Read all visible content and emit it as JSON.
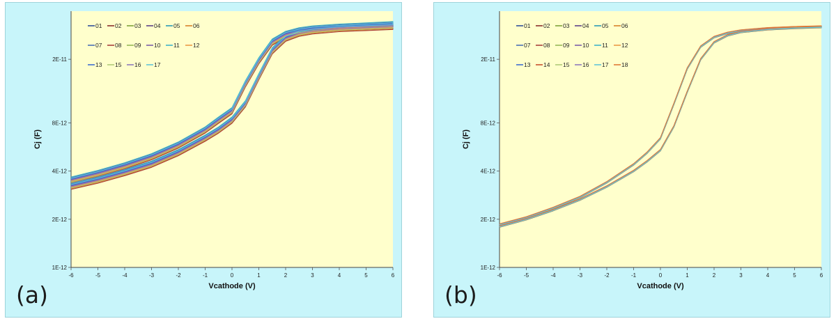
{
  "chart_data": [
    {
      "id": "a",
      "type": "line",
      "panel_label": "(a)",
      "xlabel": "Vcathode (V)",
      "ylabel": "Cj (F)",
      "xlim": [
        -6,
        6
      ],
      "yscale": "log",
      "ylim": [
        1e-12,
        4e-11
      ],
      "x_ticks": [
        "-6",
        "-5",
        "-4",
        "-3",
        "-2",
        "-1",
        "0",
        "1",
        "2",
        "3",
        "4",
        "5",
        "6"
      ],
      "y_ticks": [
        {
          "value": 1e-12,
          "label": "1E-12"
        },
        {
          "value": 2e-12,
          "label": "2E-12"
        },
        {
          "value": 4e-12,
          "label": "4E-12"
        },
        {
          "value": 8e-12,
          "label": "8E-12"
        },
        {
          "value": 2e-11,
          "label": "2E-11"
        }
      ],
      "legend_position": "top-left",
      "x": [
        -6,
        -5,
        -4,
        -3,
        -2,
        -1,
        -0.5,
        0,
        0.5,
        1,
        1.5,
        2,
        2.5,
        3,
        4,
        5,
        6
      ],
      "base_curve_upper": [
        3.5e-12,
        3.85e-12,
        4.3e-12,
        4.9e-12,
        5.8e-12,
        7.2e-12,
        8.3e-12,
        9.5e-12,
        1.4e-11,
        1.95e-11,
        2.55e-11,
        2.85e-11,
        3e-11,
        3.08e-11,
        3.16e-11,
        3.22e-11,
        3.28e-11
      ],
      "base_curve_lower": [
        3.2e-12,
        3.5e-12,
        3.9e-12,
        4.4e-12,
        5.2e-12,
        6.4e-12,
        7.2e-12,
        8.3e-12,
        1.05e-11,
        1.55e-11,
        2.25e-11,
        2.7e-11,
        2.9e-11,
        3e-11,
        3.1e-11,
        3.15e-11,
        3.2e-11
      ],
      "series": [
        {
          "name": "01",
          "color": "#2f4f9a",
          "scale": 1.03
        },
        {
          "name": "02",
          "color": "#8b2e2b",
          "scale": 0.99
        },
        {
          "name": "03",
          "color": "#7fa23a",
          "scale": 1.01
        },
        {
          "name": "04",
          "color": "#5b3f88",
          "scale": 0.98
        },
        {
          "name": "05",
          "color": "#2a9ab5",
          "scale": 1.02
        },
        {
          "name": "06",
          "color": "#d9802a",
          "scale": 0.97
        },
        {
          "name": "07",
          "color": "#4a6fb5",
          "scale": 1.04
        },
        {
          "name": "08",
          "color": "#a8403b",
          "scale": 0.96
        },
        {
          "name": "09",
          "color": "#96b856",
          "scale": 1.0
        },
        {
          "name": "10",
          "color": "#7a5da8",
          "scale": 1.01
        },
        {
          "name": "11",
          "color": "#3fb2c9",
          "scale": 1.05
        },
        {
          "name": "12",
          "color": "#ec9a45",
          "scale": 0.99
        },
        {
          "name": "13",
          "color": "#3d6dd0",
          "scale": 1.02
        },
        {
          "name": "15",
          "color": "#b0c978",
          "scale": 0.98
        },
        {
          "name": "16",
          "color": "#8e79bd",
          "scale": 1.0
        },
        {
          "name": "17",
          "color": "#62c4d8",
          "scale": 1.03
        }
      ]
    },
    {
      "id": "b",
      "type": "line",
      "panel_label": "(b)",
      "xlabel": "Vcathode (V)",
      "ylabel": "Cj (F)",
      "xlim": [
        -6,
        6
      ],
      "yscale": "log",
      "ylim": [
        1e-12,
        4e-11
      ],
      "x_ticks": [
        "-6",
        "-5",
        "-4",
        "-3",
        "-2",
        "-1",
        "0",
        "1",
        "2",
        "3",
        "4",
        "5",
        "6"
      ],
      "y_ticks": [
        {
          "value": 1e-12,
          "label": "1E-12"
        },
        {
          "value": 2e-12,
          "label": "2E-12"
        },
        {
          "value": 4e-12,
          "label": "4E-12"
        },
        {
          "value": 8e-12,
          "label": "8E-12"
        },
        {
          "value": 2e-11,
          "label": "2E-11"
        }
      ],
      "legend_position": "top-left",
      "x": [
        -6,
        -5,
        -4,
        -3,
        -2,
        -1,
        -0.5,
        0,
        0.5,
        1,
        1.5,
        2,
        2.5,
        3,
        4,
        5,
        6
      ],
      "base_curve_upper": [
        1.85e-12,
        2.05e-12,
        2.35e-12,
        2.75e-12,
        3.4e-12,
        4.4e-12,
        5.2e-12,
        6.4e-12,
        1.05e-11,
        1.75e-11,
        2.4e-11,
        2.75e-11,
        2.92e-11,
        3.02e-11,
        3.12e-11,
        3.17e-11,
        3.2e-11
      ],
      "base_curve_lower": [
        1.8e-12,
        2e-12,
        2.28e-12,
        2.65e-12,
        3.2e-12,
        4e-12,
        4.6e-12,
        5.4e-12,
        7.6e-12,
        1.25e-11,
        2e-11,
        2.55e-11,
        2.82e-11,
        2.96e-11,
        3.08e-11,
        3.14e-11,
        3.18e-11
      ],
      "series": [
        {
          "name": "01",
          "color": "#2f4f9a",
          "scale": 1.0
        },
        {
          "name": "02",
          "color": "#8b2e2b",
          "scale": 1.005
        },
        {
          "name": "03",
          "color": "#7fa23a",
          "scale": 0.995
        },
        {
          "name": "04",
          "color": "#5b3f88",
          "scale": 1.01
        },
        {
          "name": "05",
          "color": "#2a9ab5",
          "scale": 0.99
        },
        {
          "name": "06",
          "color": "#d9802a",
          "scale": 1.0
        },
        {
          "name": "07",
          "color": "#4a6fb5",
          "scale": 1.008
        },
        {
          "name": "08",
          "color": "#a8403b",
          "scale": 0.992
        },
        {
          "name": "09",
          "color": "#96b856",
          "scale": 1.003
        },
        {
          "name": "10",
          "color": "#7a5da8",
          "scale": 0.997
        },
        {
          "name": "11",
          "color": "#3fb2c9",
          "scale": 1.006
        },
        {
          "name": "12",
          "color": "#ec9a45",
          "scale": 0.994
        },
        {
          "name": "13",
          "color": "#3d6dd0",
          "scale": 1.0
        },
        {
          "name": "14",
          "color": "#c8502c",
          "scale": 1.004
        },
        {
          "name": "15",
          "color": "#b0c978",
          "scale": 0.996
        },
        {
          "name": "16",
          "color": "#8e79bd",
          "scale": 1.002
        },
        {
          "name": "17",
          "color": "#62c4d8",
          "scale": 0.998
        },
        {
          "name": "18",
          "color": "#e07a35",
          "scale": 1.012
        }
      ]
    }
  ]
}
